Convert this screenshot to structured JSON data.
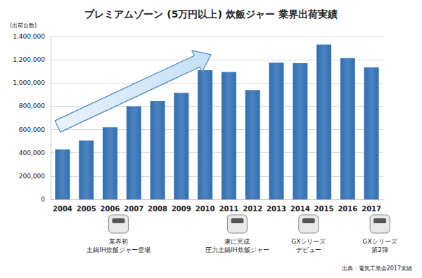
{
  "chart_data": {
    "type": "bar",
    "title": "プレミアムゾーン (5万円以上) 炊飯ジャー 業界出荷実績",
    "ylabel": "(出荷台数)",
    "categories": [
      "2004",
      "2005",
      "2006",
      "2007",
      "2008",
      "2009",
      "2010",
      "2011",
      "2012",
      "2013",
      "2014",
      "2015",
      "2016",
      "2017"
    ],
    "values": [
      430000,
      505000,
      620000,
      800000,
      845000,
      915000,
      1110000,
      1095000,
      940000,
      1175000,
      1170000,
      1330000,
      1215000,
      1135000
    ],
    "color": "#2f6eb5",
    "ylim": [
      0,
      1400000
    ],
    "yticks": [
      0,
      {
        "value": 200000,
        "label": "200,000"
      },
      {
        "value": 400000,
        "label": "400,000"
      },
      {
        "value": 600000,
        "label": "600,000"
      },
      {
        "value": 800000,
        "label": "800,000"
      },
      {
        "value": 1000000,
        "label": "1,000,000"
      },
      {
        "value": 1200000,
        "label": "1,200,000"
      },
      {
        "value": 1400000,
        "label": "1,400,000"
      }
    ],
    "grid": true,
    "annotations": [
      {
        "category": "2006",
        "text": [
          "業界初",
          "土鍋IH炊飯ジャー登場"
        ]
      },
      {
        "category": "2011",
        "text": [
          "遂に完成",
          "圧力土鍋IH炊飯ジャー"
        ]
      },
      {
        "category": "2014",
        "text": [
          "GXシリーズ",
          "デビュー"
        ]
      },
      {
        "category": "2017",
        "text": [
          "GXシリーズ",
          "第2弾"
        ]
      }
    ],
    "source": "出典：電気工業会2017実績"
  }
}
